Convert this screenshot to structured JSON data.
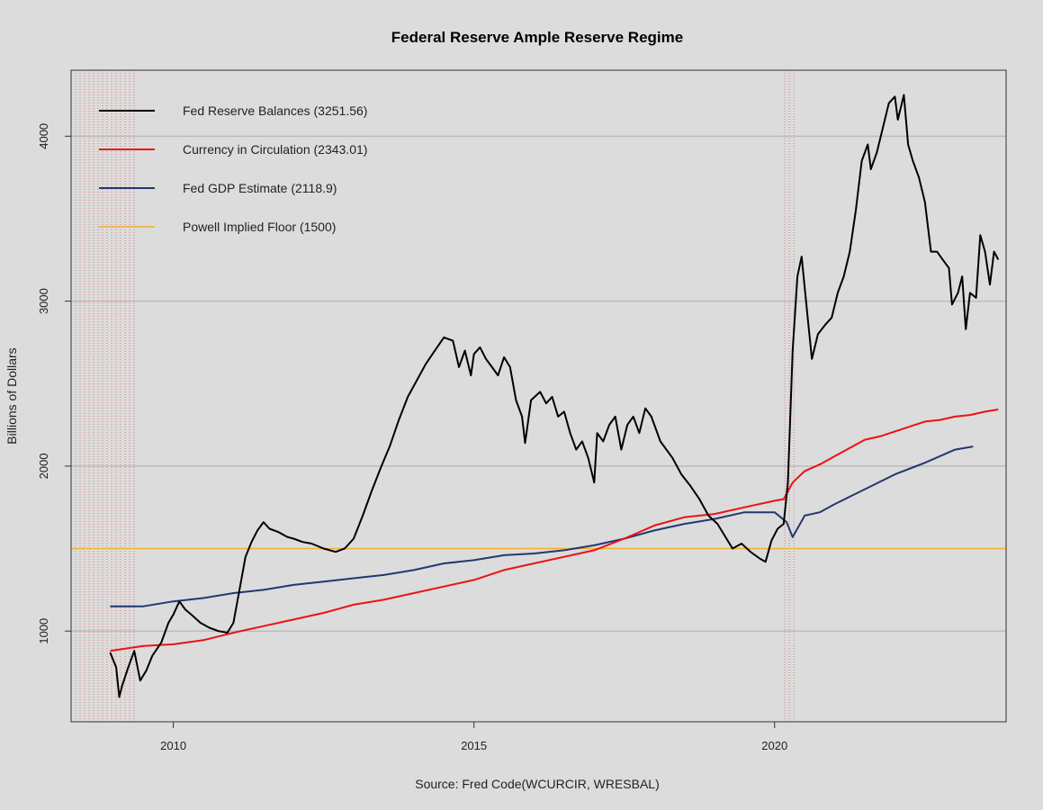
{
  "chart_data": {
    "type": "line",
    "title": "Federal Reserve Ample Reserve Regime",
    "xlabel": "Source: Fred Code(WCURCIR, WRESBAL)",
    "ylabel": "Billions of Dollars",
    "xlim": [
      2008.3,
      2023.85
    ],
    "ylim": [
      450,
      4400
    ],
    "x_ticks": [
      2010,
      2015,
      2020
    ],
    "y_ticks": [
      1000,
      2000,
      3000,
      4000
    ],
    "grid": "horizontal",
    "legend_position": "top-left",
    "recession_bands": [
      {
        "start": 2008.3,
        "end": 2009.42
      },
      {
        "start": 2020.17,
        "end": 2020.33
      }
    ],
    "colors": {
      "background": "#dcdcdc",
      "grid": "#bcbcbc",
      "recession": "#e07a7a",
      "reserves": "#000000",
      "currency": "#ee1111",
      "gdp": "#22386e",
      "floor": "#f0b030"
    },
    "series": [
      {
        "name": "Fed Reserve Balances (3251.56)",
        "key": "reserves",
        "color": "#000000",
        "points": [
          [
            2008.95,
            870
          ],
          [
            2009.05,
            780
          ],
          [
            2009.1,
            600
          ],
          [
            2009.15,
            670
          ],
          [
            2009.25,
            780
          ],
          [
            2009.35,
            880
          ],
          [
            2009.45,
            700
          ],
          [
            2009.55,
            760
          ],
          [
            2009.65,
            850
          ],
          [
            2009.8,
            930
          ],
          [
            2009.92,
            1050
          ],
          [
            2010.0,
            1100
          ],
          [
            2010.1,
            1180
          ],
          [
            2010.2,
            1130
          ],
          [
            2010.3,
            1100
          ],
          [
            2010.45,
            1050
          ],
          [
            2010.6,
            1020
          ],
          [
            2010.75,
            1000
          ],
          [
            2010.9,
            990
          ],
          [
            2011.0,
            1050
          ],
          [
            2011.1,
            1250
          ],
          [
            2011.2,
            1450
          ],
          [
            2011.3,
            1540
          ],
          [
            2011.4,
            1610
          ],
          [
            2011.5,
            1660
          ],
          [
            2011.6,
            1620
          ],
          [
            2011.75,
            1600
          ],
          [
            2011.9,
            1570
          ],
          [
            2012.0,
            1560
          ],
          [
            2012.15,
            1540
          ],
          [
            2012.3,
            1530
          ],
          [
            2012.5,
            1500
          ],
          [
            2012.7,
            1480
          ],
          [
            2012.85,
            1500
          ],
          [
            2013.0,
            1560
          ],
          [
            2013.15,
            1700
          ],
          [
            2013.3,
            1850
          ],
          [
            2013.45,
            1990
          ],
          [
            2013.6,
            2120
          ],
          [
            2013.75,
            2280
          ],
          [
            2013.9,
            2420
          ],
          [
            2014.05,
            2520
          ],
          [
            2014.2,
            2620
          ],
          [
            2014.35,
            2700
          ],
          [
            2014.5,
            2780
          ],
          [
            2014.65,
            2760
          ],
          [
            2014.75,
            2600
          ],
          [
            2014.85,
            2700
          ],
          [
            2014.95,
            2550
          ],
          [
            2015.0,
            2680
          ],
          [
            2015.1,
            2720
          ],
          [
            2015.2,
            2650
          ],
          [
            2015.3,
            2600
          ],
          [
            2015.4,
            2550
          ],
          [
            2015.5,
            2660
          ],
          [
            2015.6,
            2600
          ],
          [
            2015.7,
            2400
          ],
          [
            2015.8,
            2300
          ],
          [
            2015.85,
            2140
          ],
          [
            2015.95,
            2400
          ],
          [
            2016.1,
            2450
          ],
          [
            2016.2,
            2380
          ],
          [
            2016.3,
            2420
          ],
          [
            2016.4,
            2300
          ],
          [
            2016.5,
            2330
          ],
          [
            2016.6,
            2200
          ],
          [
            2016.7,
            2100
          ],
          [
            2016.8,
            2150
          ],
          [
            2016.9,
            2050
          ],
          [
            2017.0,
            1900
          ],
          [
            2017.05,
            2200
          ],
          [
            2017.15,
            2150
          ],
          [
            2017.25,
            2250
          ],
          [
            2017.35,
            2300
          ],
          [
            2017.45,
            2100
          ],
          [
            2017.55,
            2250
          ],
          [
            2017.65,
            2300
          ],
          [
            2017.75,
            2200
          ],
          [
            2017.85,
            2350
          ],
          [
            2017.95,
            2300
          ],
          [
            2018.1,
            2150
          ],
          [
            2018.3,
            2050
          ],
          [
            2018.45,
            1950
          ],
          [
            2018.6,
            1880
          ],
          [
            2018.75,
            1800
          ],
          [
            2018.9,
            1700
          ],
          [
            2019.05,
            1650
          ],
          [
            2019.2,
            1560
          ],
          [
            2019.3,
            1500
          ],
          [
            2019.45,
            1530
          ],
          [
            2019.6,
            1480
          ],
          [
            2019.75,
            1440
          ],
          [
            2019.85,
            1420
          ],
          [
            2019.95,
            1550
          ],
          [
            2020.05,
            1620
          ],
          [
            2020.15,
            1650
          ],
          [
            2020.22,
            1900
          ],
          [
            2020.3,
            2700
          ],
          [
            2020.38,
            3150
          ],
          [
            2020.45,
            3270
          ],
          [
            2020.55,
            2900
          ],
          [
            2020.62,
            2650
          ],
          [
            2020.72,
            2800
          ],
          [
            2020.85,
            2860
          ],
          [
            2020.95,
            2900
          ],
          [
            2021.05,
            3050
          ],
          [
            2021.15,
            3150
          ],
          [
            2021.25,
            3300
          ],
          [
            2021.35,
            3550
          ],
          [
            2021.45,
            3850
          ],
          [
            2021.55,
            3950
          ],
          [
            2021.6,
            3800
          ],
          [
            2021.7,
            3900
          ],
          [
            2021.8,
            4050
          ],
          [
            2021.9,
            4200
          ],
          [
            2022.0,
            4240
          ],
          [
            2022.05,
            4100
          ],
          [
            2022.15,
            4250
          ],
          [
            2022.22,
            3950
          ],
          [
            2022.3,
            3850
          ],
          [
            2022.4,
            3750
          ],
          [
            2022.5,
            3600
          ],
          [
            2022.6,
            3300
          ],
          [
            2022.7,
            3300
          ],
          [
            2022.8,
            3250
          ],
          [
            2022.9,
            3200
          ],
          [
            2022.95,
            2980
          ],
          [
            2023.05,
            3050
          ],
          [
            2023.12,
            3150
          ],
          [
            2023.18,
            2830
          ],
          [
            2023.25,
            3050
          ],
          [
            2023.35,
            3020
          ],
          [
            2023.42,
            3400
          ],
          [
            2023.5,
            3300
          ],
          [
            2023.58,
            3100
          ],
          [
            2023.65,
            3300
          ],
          [
            2023.72,
            3251.56
          ]
        ]
      },
      {
        "name": "Currency in Circulation (2343.01)",
        "key": "currency",
        "color": "#ee1111",
        "points": [
          [
            2008.95,
            880
          ],
          [
            2009.5,
            910
          ],
          [
            2010.0,
            920
          ],
          [
            2010.5,
            945
          ],
          [
            2011.0,
            990
          ],
          [
            2011.5,
            1030
          ],
          [
            2012.0,
            1070
          ],
          [
            2012.5,
            1110
          ],
          [
            2013.0,
            1160
          ],
          [
            2013.5,
            1190
          ],
          [
            2014.0,
            1230
          ],
          [
            2014.5,
            1270
          ],
          [
            2015.0,
            1310
          ],
          [
            2015.5,
            1370
          ],
          [
            2016.0,
            1410
          ],
          [
            2016.5,
            1450
          ],
          [
            2017.0,
            1490
          ],
          [
            2017.5,
            1560
          ],
          [
            2018.0,
            1640
          ],
          [
            2018.5,
            1690
          ],
          [
            2019.0,
            1710
          ],
          [
            2019.5,
            1750
          ],
          [
            2020.0,
            1790
          ],
          [
            2020.15,
            1800
          ],
          [
            2020.3,
            1900
          ],
          [
            2020.5,
            1970
          ],
          [
            2020.75,
            2010
          ],
          [
            2021.0,
            2060
          ],
          [
            2021.25,
            2110
          ],
          [
            2021.5,
            2160
          ],
          [
            2021.75,
            2180
          ],
          [
            2022.0,
            2210
          ],
          [
            2022.25,
            2240
          ],
          [
            2022.5,
            2270
          ],
          [
            2022.75,
            2280
          ],
          [
            2023.0,
            2300
          ],
          [
            2023.25,
            2310
          ],
          [
            2023.5,
            2330
          ],
          [
            2023.72,
            2343.01
          ]
        ]
      },
      {
        "name": "Fed GDP Estimate (2118.9)",
        "key": "gdp",
        "color": "#22386e",
        "points": [
          [
            2008.95,
            1150
          ],
          [
            2009.5,
            1150
          ],
          [
            2010.0,
            1180
          ],
          [
            2010.5,
            1200
          ],
          [
            2011.0,
            1230
          ],
          [
            2011.5,
            1250
          ],
          [
            2012.0,
            1280
          ],
          [
            2012.5,
            1300
          ],
          [
            2013.0,
            1320
          ],
          [
            2013.5,
            1340
          ],
          [
            2014.0,
            1370
          ],
          [
            2014.5,
            1410
          ],
          [
            2015.0,
            1430
          ],
          [
            2015.5,
            1460
          ],
          [
            2016.0,
            1470
          ],
          [
            2016.5,
            1490
          ],
          [
            2017.0,
            1520
          ],
          [
            2017.5,
            1560
          ],
          [
            2018.0,
            1610
          ],
          [
            2018.5,
            1650
          ],
          [
            2019.0,
            1680
          ],
          [
            2019.5,
            1720
          ],
          [
            2020.0,
            1720
          ],
          [
            2020.2,
            1660
          ],
          [
            2020.3,
            1570
          ],
          [
            2020.5,
            1700
          ],
          [
            2020.75,
            1720
          ],
          [
            2021.0,
            1770
          ],
          [
            2021.5,
            1860
          ],
          [
            2022.0,
            1950
          ],
          [
            2022.5,
            2020
          ],
          [
            2023.0,
            2100
          ],
          [
            2023.3,
            2118.9
          ]
        ]
      },
      {
        "name": "Powell Implied Floor (1500)",
        "key": "floor",
        "color": "#f0b030",
        "points": [
          [
            2008.3,
            1500
          ],
          [
            2023.85,
            1500
          ]
        ]
      }
    ]
  }
}
